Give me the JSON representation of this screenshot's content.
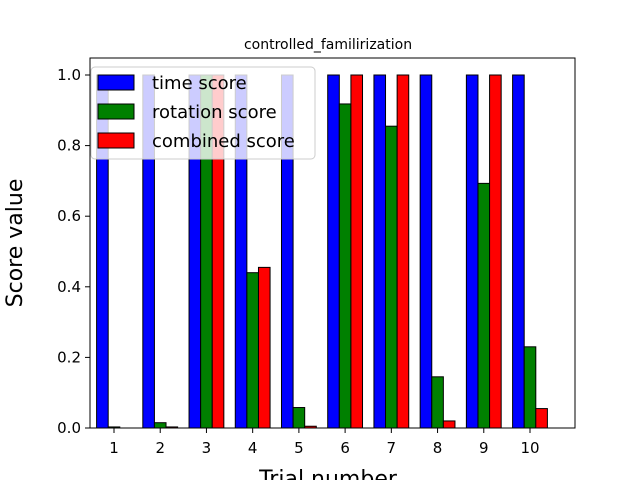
{
  "chart_data": {
    "type": "bar",
    "title": "controlled_familirization",
    "xlabel": "Trial number",
    "ylabel": "Score value",
    "categories": [
      "1",
      "2",
      "3",
      "4",
      "5",
      "6",
      "7",
      "8",
      "9",
      "10"
    ],
    "ylim": [
      0,
      1.05
    ],
    "yticks": [
      "0.0",
      "0.2",
      "0.4",
      "0.6",
      "0.8",
      "1.0"
    ],
    "series": [
      {
        "name": "time score",
        "color": "#0000ff",
        "values": [
          1.0,
          1.0,
          1.0,
          1.0,
          1.0,
          1.0,
          1.0,
          1.0,
          1.0,
          1.0
        ]
      },
      {
        "name": "rotation score",
        "color": "#008000",
        "values": [
          0.003,
          0.015,
          1.0,
          0.44,
          0.058,
          0.918,
          0.855,
          0.145,
          0.693,
          0.23
        ]
      },
      {
        "name": "combined score",
        "color": "#ff0000",
        "values": [
          0.0,
          0.003,
          1.0,
          0.455,
          0.005,
          1.0,
          1.0,
          0.02,
          1.0,
          0.055
        ]
      }
    ],
    "grid": false,
    "legend": "upper-left"
  }
}
